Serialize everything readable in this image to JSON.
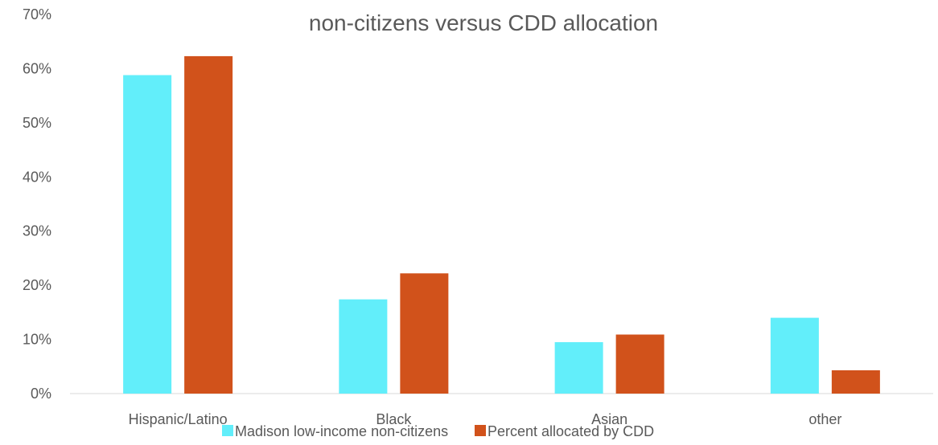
{
  "chart_data": {
    "type": "bar",
    "title": "non-citizens versus CDD allocation",
    "xlabel": "",
    "ylabel": "",
    "categories": [
      "Hispanic/Latino",
      "Black",
      "Asian",
      "other"
    ],
    "series": [
      {
        "name": "Madison low-income non-citizens",
        "color": "#62EEFA",
        "values": [
          58.8,
          17.4,
          9.5,
          14.0
        ]
      },
      {
        "name": "Percent allocated by CDD",
        "color": "#D1521B",
        "values": [
          62.3,
          22.2,
          10.9,
          4.3
        ]
      }
    ],
    "ylim": [
      0,
      70
    ],
    "yticks": [
      0,
      10,
      20,
      30,
      40,
      50,
      60,
      70
    ],
    "ytick_labels": [
      "0%",
      "10%",
      "20%",
      "30%",
      "40%",
      "50%",
      "60%",
      "70%"
    ],
    "grid": false,
    "legend_position": "bottom"
  }
}
